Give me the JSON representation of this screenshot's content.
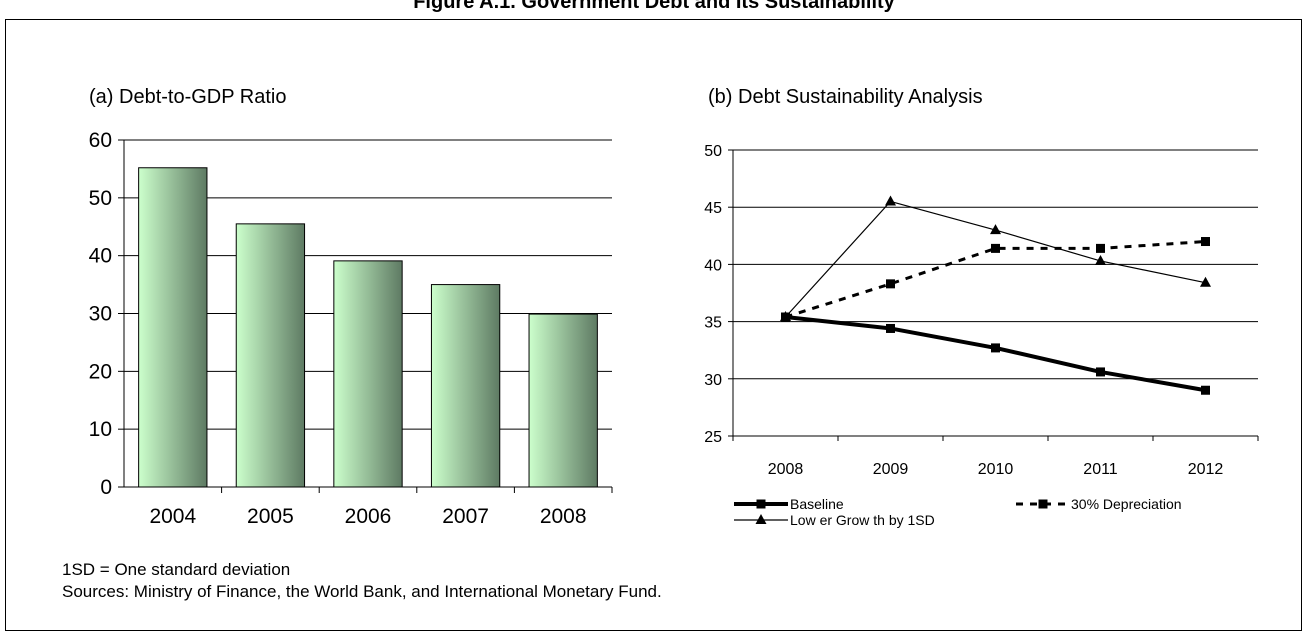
{
  "figure_title": "Figure A.1. Government Debt and Its Sustainability",
  "footnote": "1SD = One standard deviation",
  "sources": "Sources: Ministry of Finance, the World Bank, and International Monetary Fund.",
  "colors": {
    "bar_light": "#ccffcc",
    "bar_dark": "#5e7a63",
    "grid": "#000000",
    "line": "#000000"
  },
  "chart_data": [
    {
      "type": "bar",
      "title": "(a) Debt-to-GDP Ratio",
      "categories": [
        "2004",
        "2005",
        "2006",
        "2007",
        "2008"
      ],
      "values": [
        55.2,
        45.5,
        39.1,
        35.0,
        29.9
      ],
      "ylim": [
        0,
        60
      ],
      "yticks": [
        0,
        10,
        20,
        30,
        40,
        50,
        60
      ],
      "grid": true,
      "legend": "none"
    },
    {
      "type": "line",
      "title": "(b) Debt Sustainability Analysis",
      "categories": [
        "2008",
        "2009",
        "2010",
        "2011",
        "2012"
      ],
      "series": [
        {
          "name": "Baseline",
          "values": [
            35.4,
            34.4,
            32.7,
            30.6,
            29.0
          ],
          "style": "thick-solid",
          "marker": "square"
        },
        {
          "name": "30% Depreciation",
          "values": [
            35.4,
            38.3,
            41.4,
            41.4,
            42.0
          ],
          "style": "dashed",
          "marker": "square"
        },
        {
          "name": "Low er Grow th by 1SD",
          "values": [
            35.4,
            45.5,
            43.0,
            40.3,
            38.4
          ],
          "style": "thin-solid",
          "marker": "triangle"
        }
      ],
      "ylim": [
        25,
        50
      ],
      "yticks": [
        25,
        30,
        35,
        40,
        45,
        50
      ],
      "grid": true,
      "legend": "bottom"
    }
  ]
}
